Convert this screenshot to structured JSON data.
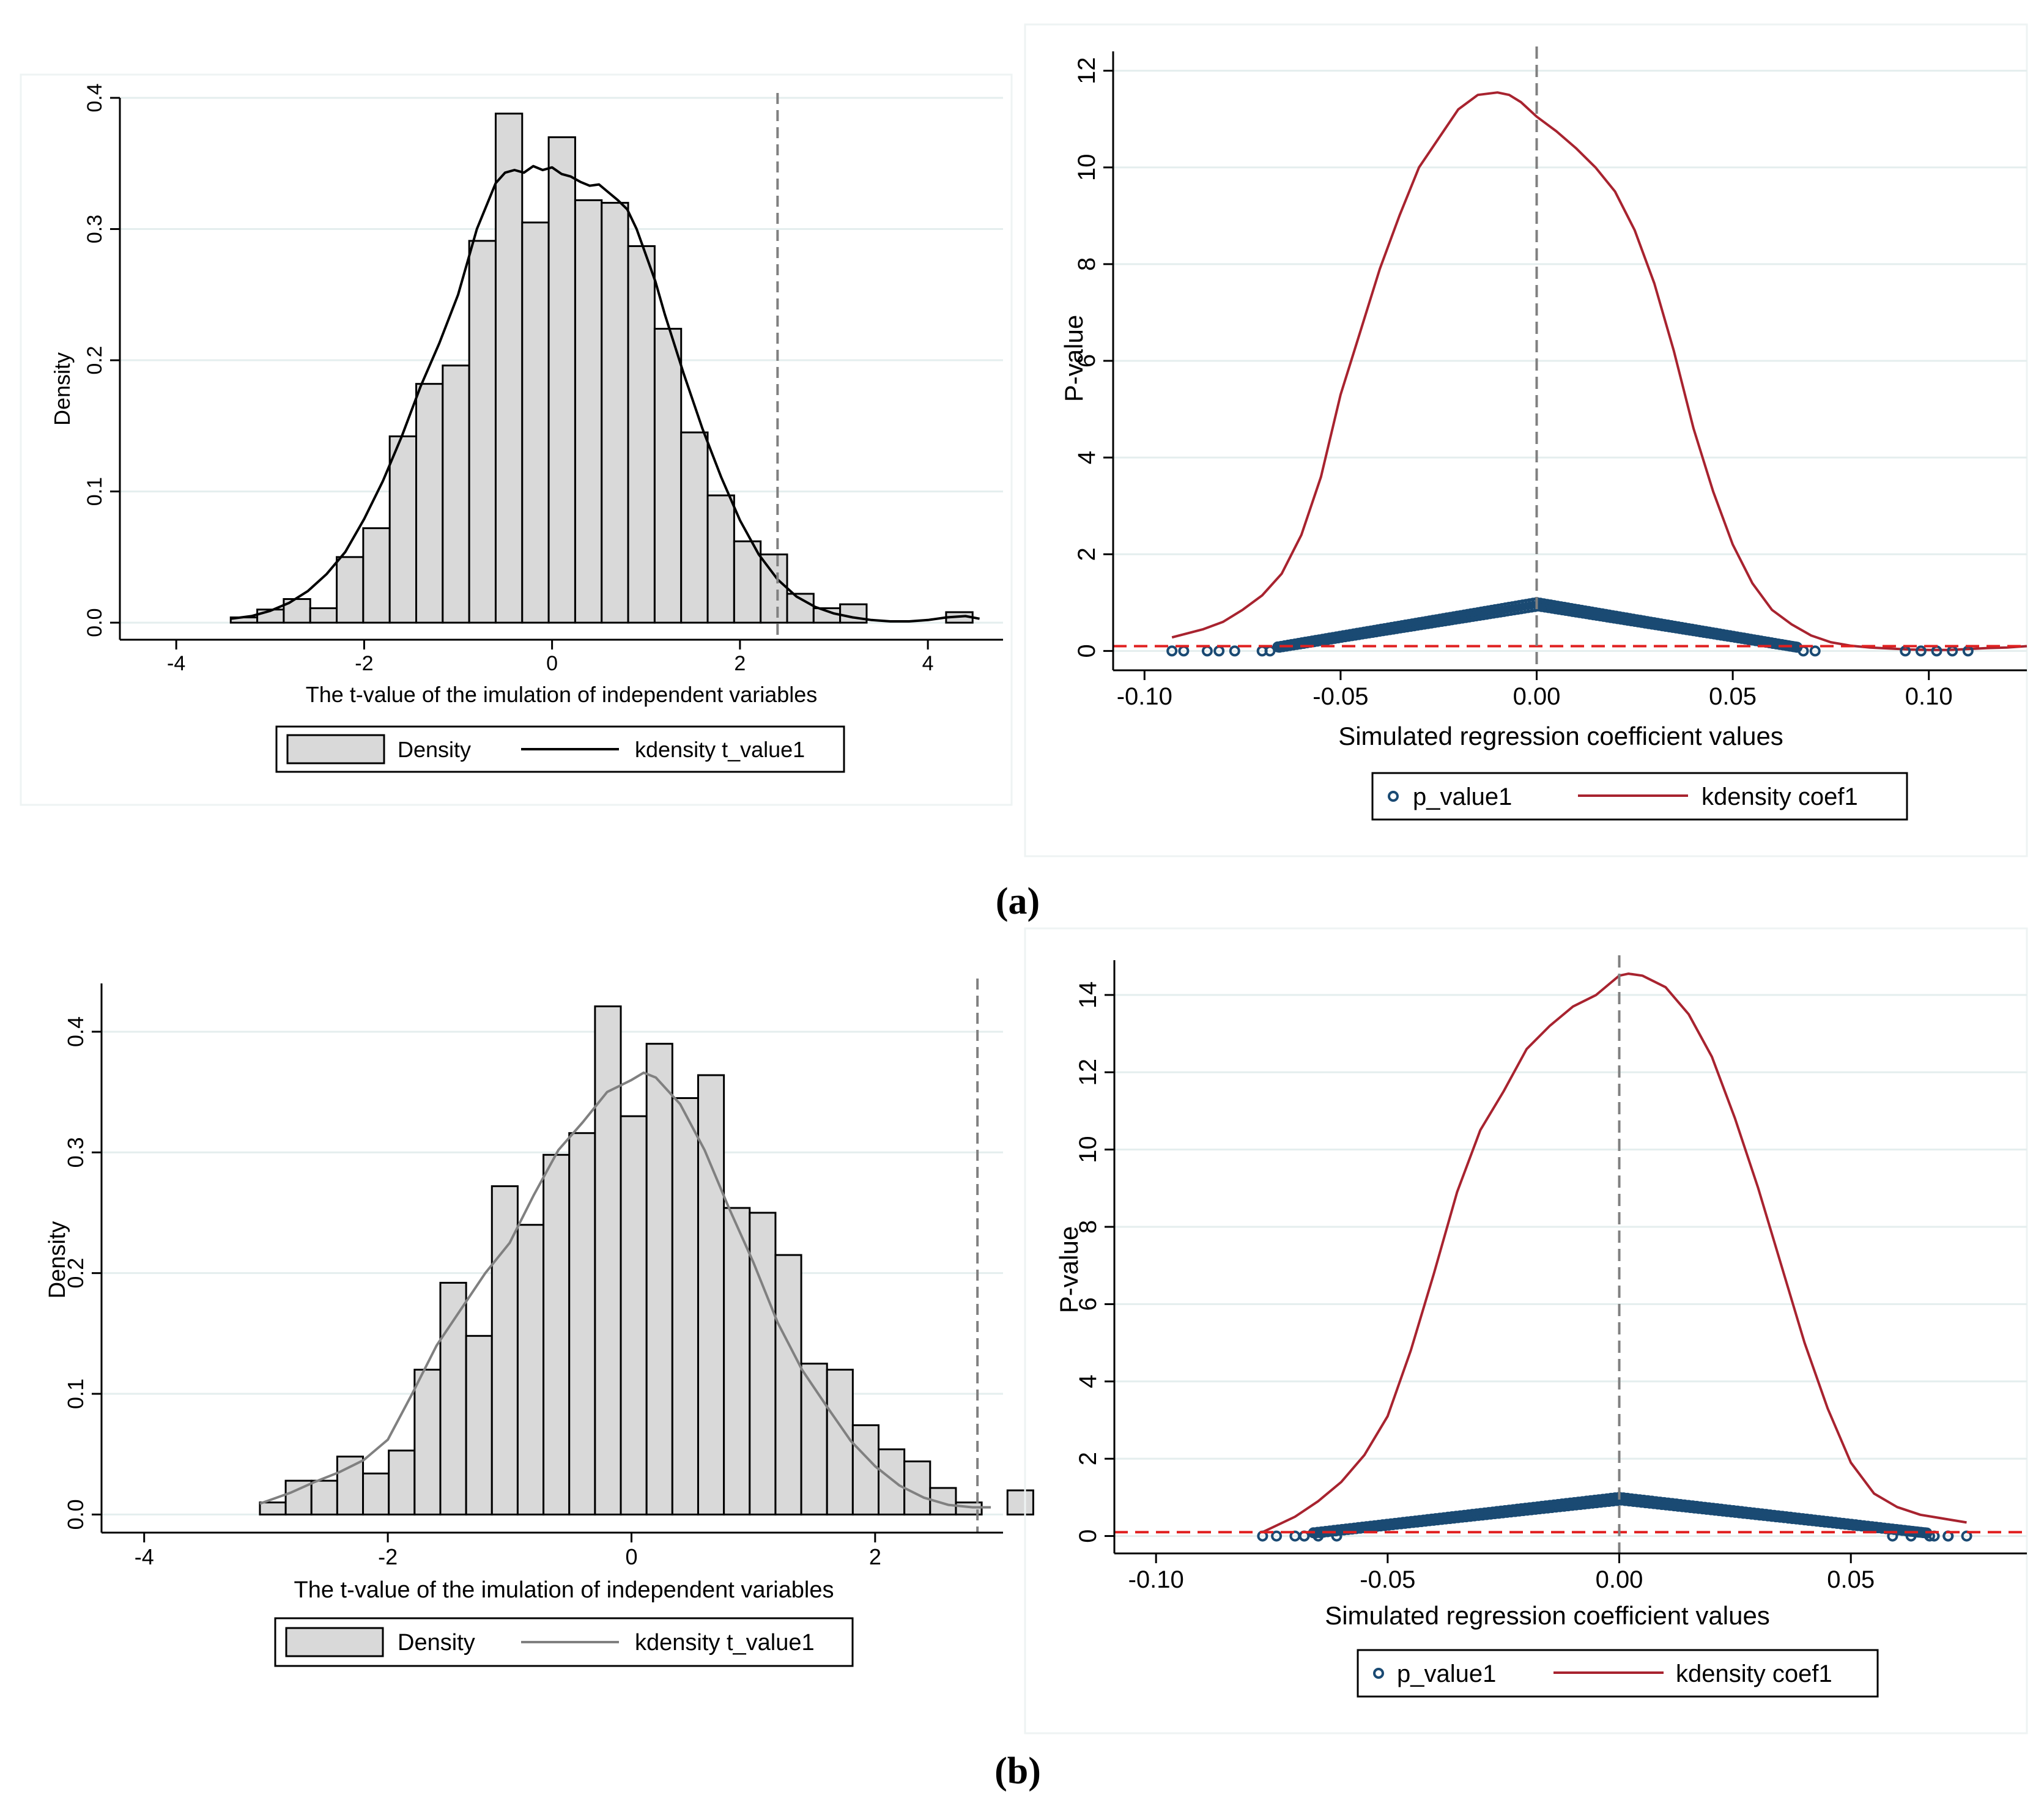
{
  "figure": {
    "label_a": "(a)",
    "label_b": "(b)"
  },
  "chart_data": [
    {
      "id": "a-hist",
      "type": "bar",
      "xlabel": "The t-value of the imulation of independent variables",
      "ylabel": "Density",
      "xlim": [
        -4.6,
        4.8
      ],
      "ylim": [
        -0.013,
        0.4
      ],
      "xticks": [
        -4,
        -2,
        0,
        2,
        4
      ],
      "yticks": [
        0.0,
        0.1,
        0.2,
        0.3,
        0.4
      ],
      "ref_line_x": 2.4,
      "bin_start": -3.42,
      "bin_width": 0.282,
      "values": [
        0.004,
        0.01,
        0.018,
        0.011,
        0.05,
        0.072,
        0.142,
        0.182,
        0.196,
        0.291,
        0.388,
        0.305,
        0.37,
        0.322,
        0.32,
        0.287,
        0.224,
        0.145,
        0.097,
        0.062,
        0.052,
        0.022,
        0.011,
        0.014,
        0.0,
        0.0,
        0.0,
        0.008
      ],
      "kde": {
        "name": "kdensity t_value1",
        "x": [
          -3.42,
          -3.2,
          -3.0,
          -2.8,
          -2.6,
          -2.4,
          -2.2,
          -2.0,
          -1.8,
          -1.6,
          -1.4,
          -1.2,
          -1.0,
          -0.8,
          -0.6,
          -0.5,
          -0.4,
          -0.3,
          -0.2,
          -0.1,
          0.0,
          0.1,
          0.2,
          0.3,
          0.4,
          0.5,
          0.6,
          0.7,
          0.8,
          0.9,
          1.0,
          1.1,
          1.2,
          1.4,
          1.6,
          1.8,
          2.0,
          2.2,
          2.4,
          2.6,
          2.8,
          3.0,
          3.2,
          3.4,
          3.6,
          3.8,
          4.0,
          4.2,
          4.4,
          4.55
        ],
        "y": [
          0.003,
          0.005,
          0.009,
          0.015,
          0.024,
          0.037,
          0.054,
          0.079,
          0.108,
          0.142,
          0.18,
          0.213,
          0.25,
          0.3,
          0.335,
          0.343,
          0.345,
          0.343,
          0.348,
          0.345,
          0.347,
          0.342,
          0.34,
          0.336,
          0.333,
          0.334,
          0.328,
          0.322,
          0.315,
          0.3,
          0.28,
          0.26,
          0.235,
          0.19,
          0.148,
          0.111,
          0.078,
          0.052,
          0.033,
          0.02,
          0.012,
          0.007,
          0.004,
          0.002,
          0.001,
          0.001,
          0.002,
          0.004,
          0.005,
          0.003
        ]
      },
      "legend": [
        "Density",
        "kdensity t_value1"
      ],
      "colors": {
        "bar": "#d9d9d9",
        "kde": "#000000"
      }
    },
    {
      "id": "a-kde",
      "type": "line",
      "xlabel": "Simulated regression coefficient values",
      "ylabel": "P-value",
      "xlim": [
        -0.108,
        0.125
      ],
      "ylim": [
        -0.4,
        12.4
      ],
      "xticks": [
        -0.1,
        -0.05,
        0.0,
        0.05,
        0.1
      ],
      "xtick_labels": [
        "-0.10",
        "-0.05",
        "0.00",
        "0.05",
        "0.10"
      ],
      "yticks": [
        0,
        2,
        4,
        6,
        8,
        10,
        12
      ],
      "ref_line_x": 0.0,
      "ref_line_y": 0.1,
      "kde": {
        "name": "kdensity coef1",
        "x": [
          -0.093,
          -0.085,
          -0.08,
          -0.075,
          -0.07,
          -0.065,
          -0.06,
          -0.055,
          -0.05,
          -0.045,
          -0.04,
          -0.035,
          -0.03,
          -0.025,
          -0.02,
          -0.015,
          -0.01,
          -0.007,
          -0.004,
          -0.002,
          0.0,
          0.005,
          0.01,
          0.015,
          0.02,
          0.025,
          0.03,
          0.035,
          0.04,
          0.045,
          0.05,
          0.055,
          0.06,
          0.065,
          0.07,
          0.075,
          0.08,
          0.085,
          0.09,
          0.095,
          0.1,
          0.105,
          0.11,
          0.115,
          0.12,
          0.125
        ],
        "y": [
          0.28,
          0.45,
          0.6,
          0.85,
          1.15,
          1.6,
          2.4,
          3.6,
          5.3,
          6.6,
          7.9,
          9.0,
          10.0,
          10.6,
          11.2,
          11.5,
          11.55,
          11.5,
          11.35,
          11.2,
          11.05,
          10.75,
          10.4,
          10.0,
          9.5,
          8.7,
          7.6,
          6.2,
          4.6,
          3.3,
          2.2,
          1.4,
          0.85,
          0.55,
          0.32,
          0.18,
          0.11,
          0.07,
          0.05,
          0.03,
          0.02,
          0.02,
          0.04,
          0.06,
          0.07,
          0.1
        ]
      },
      "scatter_name": "p_value1",
      "scatter_range": [
        -0.093,
        0.11
      ],
      "legend": [
        "p_value1",
        "kdensity coef1"
      ],
      "colors": {
        "scatter": "#1a4a73",
        "kde": "#a8232f",
        "ref_y": "#e02020",
        "ref_x": "#808080"
      }
    },
    {
      "id": "b-hist",
      "type": "bar",
      "xlabel": "The t-value of the imulation of independent variables",
      "ylabel": "Density",
      "xlim": [
        -4.35,
        3.05
      ],
      "ylim": [
        -0.015,
        0.44
      ],
      "xticks": [
        -4,
        -2,
        0,
        2
      ],
      "yticks": [
        0.0,
        0.1,
        0.2,
        0.3,
        0.4
      ],
      "ref_line_x": 2.84,
      "bin_start": -3.05,
      "bin_width": 0.2116,
      "values": [
        0.01,
        0.028,
        0.028,
        0.048,
        0.034,
        0.053,
        0.12,
        0.192,
        0.148,
        0.272,
        0.24,
        0.298,
        0.316,
        0.421,
        0.33,
        0.39,
        0.345,
        0.364,
        0.254,
        0.25,
        0.215,
        0.125,
        0.12,
        0.074,
        0.054,
        0.044,
        0.022,
        0.01,
        0.0,
        0.02
      ],
      "kde": {
        "name": "kdensity t_value1",
        "x": [
          -3.05,
          -2.8,
          -2.6,
          -2.4,
          -2.2,
          -2.0,
          -1.8,
          -1.6,
          -1.4,
          -1.2,
          -1.0,
          -0.8,
          -0.6,
          -0.4,
          -0.2,
          0.0,
          0.1,
          0.2,
          0.4,
          0.6,
          0.8,
          1.0,
          1.2,
          1.4,
          1.6,
          1.8,
          2.0,
          2.2,
          2.4,
          2.6,
          2.8,
          2.95
        ],
        "y": [
          0.009,
          0.018,
          0.027,
          0.035,
          0.045,
          0.062,
          0.1,
          0.14,
          0.17,
          0.2,
          0.225,
          0.265,
          0.302,
          0.325,
          0.35,
          0.36,
          0.366,
          0.362,
          0.34,
          0.302,
          0.254,
          0.209,
          0.159,
          0.12,
          0.09,
          0.061,
          0.04,
          0.024,
          0.014,
          0.008,
          0.006,
          0.006
        ]
      },
      "legend": [
        "Density",
        "kdensity t_value1"
      ],
      "colors": {
        "bar": "#d9d9d9",
        "kde": "#808080"
      }
    },
    {
      "id": "b-kde",
      "type": "line",
      "xlabel": "Simulated regression coefficient values",
      "ylabel": "P-value",
      "xlim": [
        -0.109,
        0.088
      ],
      "ylim": [
        -0.45,
        14.9
      ],
      "xticks": [
        -0.1,
        -0.05,
        0.0,
        0.05
      ],
      "xtick_labels": [
        "-0.10",
        "-0.05",
        "0.00",
        "0.05"
      ],
      "yticks": [
        0,
        2,
        4,
        6,
        8,
        10,
        12,
        14
      ],
      "ref_line_x": 0.0,
      "ref_line_y": 0.1,
      "kde": {
        "name": "kdensity coef1",
        "x": [
          -0.077,
          -0.07,
          -0.065,
          -0.06,
          -0.055,
          -0.05,
          -0.045,
          -0.04,
          -0.035,
          -0.03,
          -0.025,
          -0.02,
          -0.015,
          -0.01,
          -0.005,
          -0.002,
          0.0,
          0.002,
          0.005,
          0.01,
          0.015,
          0.02,
          0.025,
          0.03,
          0.035,
          0.04,
          0.045,
          0.05,
          0.055,
          0.06,
          0.065,
          0.07,
          0.075
        ],
        "y": [
          0.1,
          0.5,
          0.9,
          1.4,
          2.1,
          3.1,
          4.8,
          6.8,
          8.9,
          10.5,
          11.5,
          12.6,
          13.2,
          13.7,
          14.0,
          14.3,
          14.5,
          14.55,
          14.5,
          14.2,
          13.5,
          12.4,
          10.8,
          9.0,
          7.0,
          5.0,
          3.3,
          1.9,
          1.1,
          0.75,
          0.55,
          0.45,
          0.35
        ]
      },
      "scatter_name": "p_value1",
      "scatter_range": [
        -0.077,
        0.075
      ],
      "legend": [
        "p_value1",
        "kdensity coef1"
      ],
      "colors": {
        "scatter": "#1a4a73",
        "kde": "#a8232f",
        "ref_y": "#e02020",
        "ref_x": "#808080"
      }
    }
  ]
}
